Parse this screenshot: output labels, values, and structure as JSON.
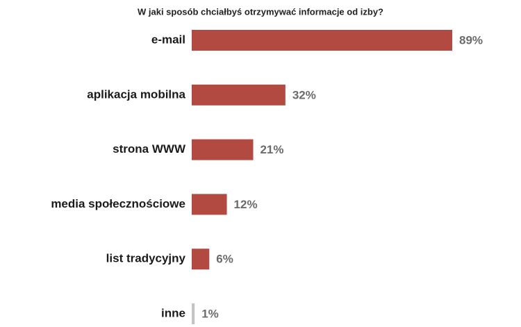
{
  "chart_data": {
    "type": "bar",
    "orientation": "horizontal",
    "title": "W jaki sposób chciałbyś otrzymywać informacje od izby?",
    "categories": [
      "e-mail",
      "aplikacja mobilna",
      "strona WWW",
      "media społecznościowe",
      "list tradycyjny",
      "inne"
    ],
    "values": [
      89,
      32,
      21,
      12,
      6,
      1
    ],
    "value_labels": [
      "89%",
      "32%",
      "21%",
      "12%",
      "6%",
      "1%"
    ],
    "colors": [
      "#b24a42",
      "#b24a42",
      "#b24a42",
      "#b24a42",
      "#b24a42",
      "#c4c4c4"
    ]
  }
}
